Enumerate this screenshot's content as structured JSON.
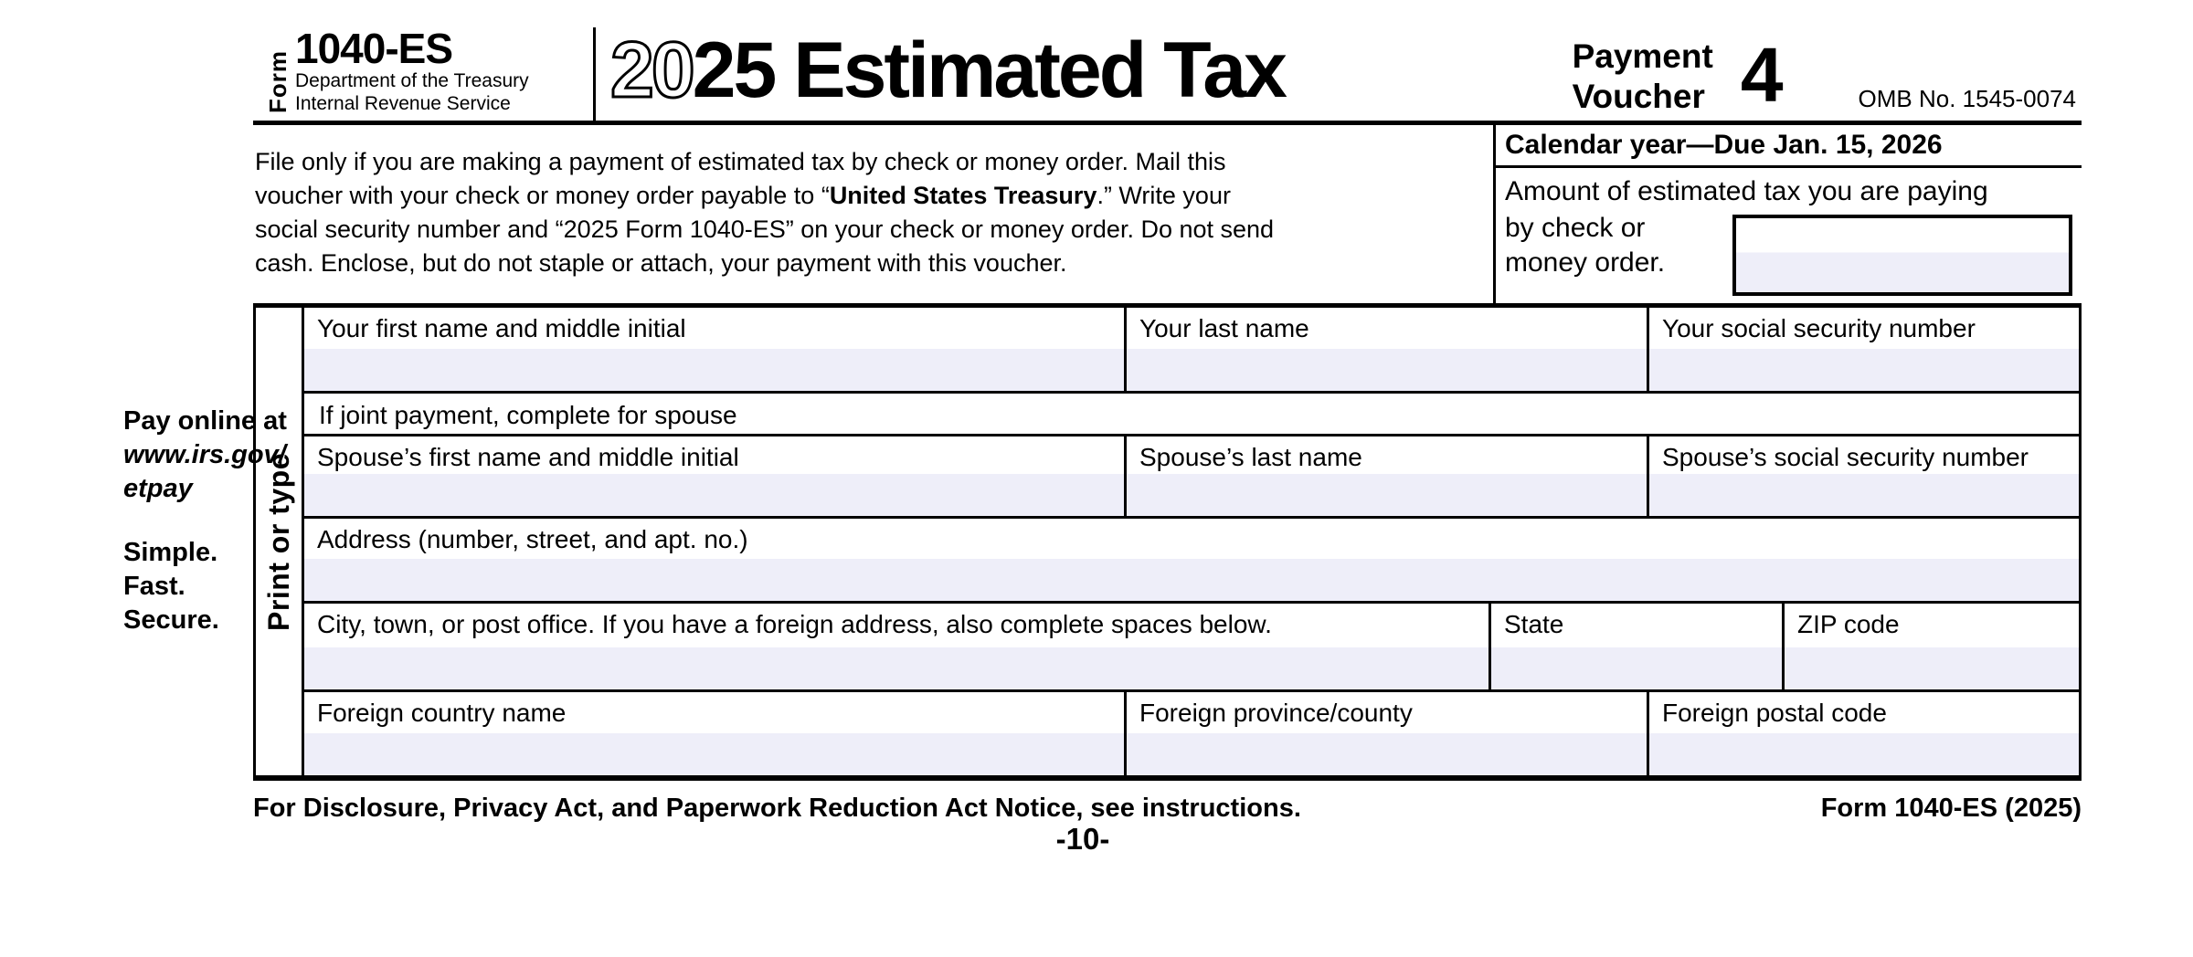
{
  "header": {
    "form_word": "Form",
    "form_number": "1040-ES",
    "dept_line1": "Department of the Treasury",
    "dept_line2": "Internal Revenue Service",
    "title_year_outline": "20",
    "title_year_solid": "25",
    "title_rest": " Estimated Tax",
    "voucher_label": "Payment\nVoucher",
    "voucher_number": "4",
    "omb": "OMB No. 1545-0074"
  },
  "instructions": {
    "line1": "File only if you are making a payment of estimated tax by check or money order. Mail this",
    "line2_pre": "voucher with your check or money order payable to “",
    "line2_bold": "United States Treasury",
    "line2_post": ".” Write your",
    "line3": "social security number and “2025 Form 1040-ES” on your check or money order. Do not send",
    "line4": "cash. Enclose, but do not staple or attach, your payment with this voucher."
  },
  "right_panel": {
    "calendar_line": "Calendar year—Due Jan. 15, 2026",
    "amount_label_line1": "Amount of estimated tax you are paying",
    "amount_label_wrap": "by check or\nmoney order.",
    "amount_value": ""
  },
  "margin_note": {
    "pay_online": "Pay online at",
    "url_line1": "www.irs.gov/",
    "url_line2": "etpay",
    "tagline": "Simple.\nFast.\nSecure."
  },
  "print_or_type": "Print or type",
  "fields": {
    "first_name": {
      "label": "Your first name and middle initial",
      "value": ""
    },
    "last_name": {
      "label": "Your last name",
      "value": ""
    },
    "ssn": {
      "label": "Your social security number",
      "value": ""
    },
    "joint_note": "If joint payment, complete for spouse",
    "spouse_first_name": {
      "label": "Spouse’s first name and middle initial",
      "value": ""
    },
    "spouse_last_name": {
      "label": "Spouse’s last name",
      "value": ""
    },
    "spouse_ssn": {
      "label": "Spouse’s social security number",
      "value": ""
    },
    "address": {
      "label": "Address (number, street, and apt. no.)",
      "value": ""
    },
    "city": {
      "label": "City, town, or post office. If you have a foreign address, also complete spaces below.",
      "value": ""
    },
    "state": {
      "label": "State",
      "value": ""
    },
    "zip": {
      "label": "ZIP code",
      "value": ""
    },
    "foreign_country": {
      "label": "Foreign country name",
      "value": ""
    },
    "foreign_province": {
      "label": "Foreign province/county",
      "value": ""
    },
    "foreign_postal": {
      "label": "Foreign postal code",
      "value": ""
    }
  },
  "footer": {
    "disclosure": "For Disclosure, Privacy Act, and Paperwork Reduction Act Notice, see instructions.",
    "form_id": "Form 1040-ES (2025)",
    "page_number": "-10-"
  },
  "colors": {
    "field_fill": "#eeeef9",
    "ink": "#000000"
  }
}
